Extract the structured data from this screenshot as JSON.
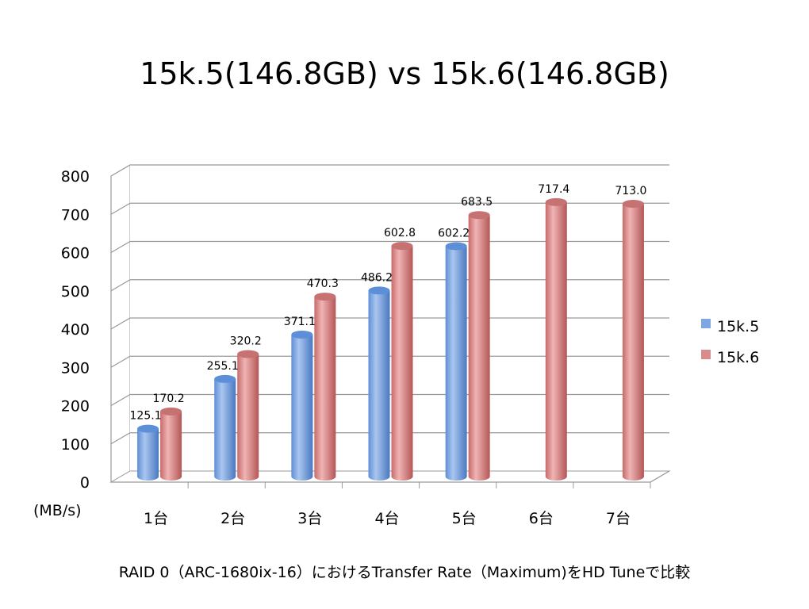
{
  "chart_data": {
    "type": "bar",
    "title": "15k.5(146.8GB) vs 15k.6(146.8GB)",
    "ylabel": "(MB/s)",
    "caption": "RAID 0（ARC-1680ix-16）におけるTransfer Rate（Maximum)をHD Tuneで比較",
    "categories": [
      "1台",
      "2台",
      "3台",
      "4台",
      "5台",
      "6台",
      "7台"
    ],
    "ylim": [
      0,
      800
    ],
    "yticks": [
      "0",
      "100",
      "200",
      "300",
      "400",
      "500",
      "600",
      "700",
      "800"
    ],
    "grid": true,
    "legend_position": "right",
    "series": [
      {
        "name": "15k.5",
        "color": "#7ea6e0",
        "values": [
          125.1,
          255.1,
          371.1,
          486.2,
          602.2,
          null,
          null
        ],
        "labels": [
          "125.1",
          "255.1",
          "371.1",
          "486.2",
          "602.2",
          "",
          ""
        ]
      },
      {
        "name": "15k.6",
        "color": "#d98c8c",
        "values": [
          170.2,
          320.2,
          470.3,
          602.8,
          683.5,
          717.4,
          713.0
        ],
        "labels": [
          "170.2",
          "320.2",
          "470.3",
          "602.8",
          "683.5",
          "717.4",
          "713.0"
        ]
      }
    ]
  }
}
